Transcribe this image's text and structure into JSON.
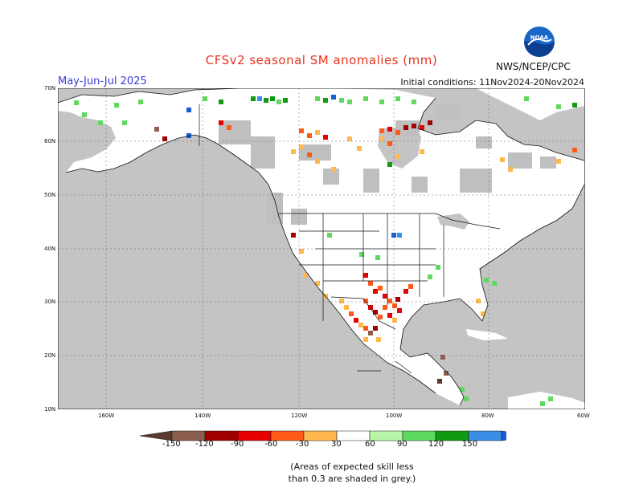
{
  "title": "CFSv2 seasonal SM anomalies (mm)",
  "season": "May-Jun-Jul 2025",
  "initial_conditions": "Initial conditions: 11Nov2024-20Nov2024",
  "agency": "NWS/NCEP/CPC",
  "logo_text": "NOAA",
  "lat_labels": [
    "70N",
    "60N",
    "50N",
    "40N",
    "30N",
    "20N",
    "10N"
  ],
  "lon_labels": [
    "160W",
    "140W",
    "120W",
    "100W",
    "80W",
    "60W"
  ],
  "colorbar": {
    "labels": [
      "-150",
      "-120",
      "-90",
      "-60",
      "-30",
      "30",
      "60",
      "90",
      "120",
      "150"
    ],
    "colors": [
      "#5a3a2c",
      "#8b5e4f",
      "#a00000",
      "#e60000",
      "#ff5a1a",
      "#ffb84d",
      "#ffffff",
      "#b8f5a8",
      "#5fd95f",
      "#109a10",
      "#3a8ee6",
      "#1a5cd6"
    ]
  },
  "note_line1": "(Areas of expected skill less",
  "note_line2": "than 0.3 are shaded in grey.)",
  "colors": {
    "ocean": "#c4c4c4",
    "land": "#ffffff",
    "skill_grey": "#bfbfbf",
    "title_red": "#e8331f",
    "season_blue": "#3a3ad6"
  }
}
